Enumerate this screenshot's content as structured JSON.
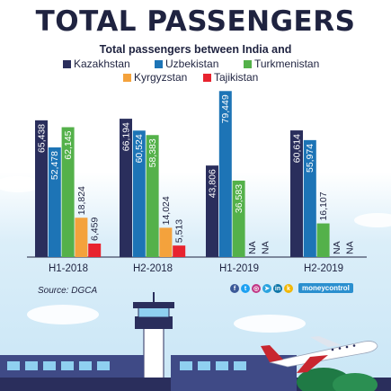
{
  "header": {
    "title": "TOTAL PASSENGERS",
    "subtitle": "Total passengers between India and"
  },
  "footer": {
    "source": "Source: DGCA",
    "brand": "moneycontrol",
    "social_icons": [
      "facebook-icon",
      "twitter-icon",
      "instagram-icon",
      "telegram-icon",
      "linkedin-icon",
      "koo-icon"
    ]
  },
  "chart_data": {
    "type": "bar",
    "title": "TOTAL PASSENGERS",
    "subtitle": "Total passengers between India and",
    "categories": [
      "H1-2018",
      "H2-2018",
      "H1-2019",
      "H2-2019"
    ],
    "series": [
      {
        "name": "Kazakhstan",
        "color": "#2a2e5c",
        "values": [
          65438,
          66194,
          43806,
          60614
        ],
        "labels": [
          "65,438",
          "66,194",
          "43,806",
          "60,614"
        ]
      },
      {
        "name": "Uzbekistan",
        "color": "#1d74b6",
        "values": [
          52478,
          60524,
          79449,
          55974
        ],
        "labels": [
          "52,478",
          "60,524",
          "79,449",
          "55,974"
        ]
      },
      {
        "name": "Turkmenistan",
        "color": "#54b14a",
        "values": [
          62145,
          58383,
          36583,
          16107
        ],
        "labels": [
          "62,145",
          "58,383",
          "36,583",
          "16,107"
        ]
      },
      {
        "name": "Kyrgyzstan",
        "color": "#f4a23c",
        "values": [
          18824,
          14024,
          null,
          null
        ],
        "labels": [
          "18,824",
          "14,024",
          "NA",
          "NA"
        ]
      },
      {
        "name": "Tajikistan",
        "color": "#e8232f",
        "values": [
          6459,
          5513,
          null,
          null
        ],
        "labels": [
          "6,459",
          "5,513",
          "NA",
          "NA"
        ]
      }
    ],
    "ylim": [
      0,
      80000
    ],
    "grid": false,
    "legend": "top"
  }
}
